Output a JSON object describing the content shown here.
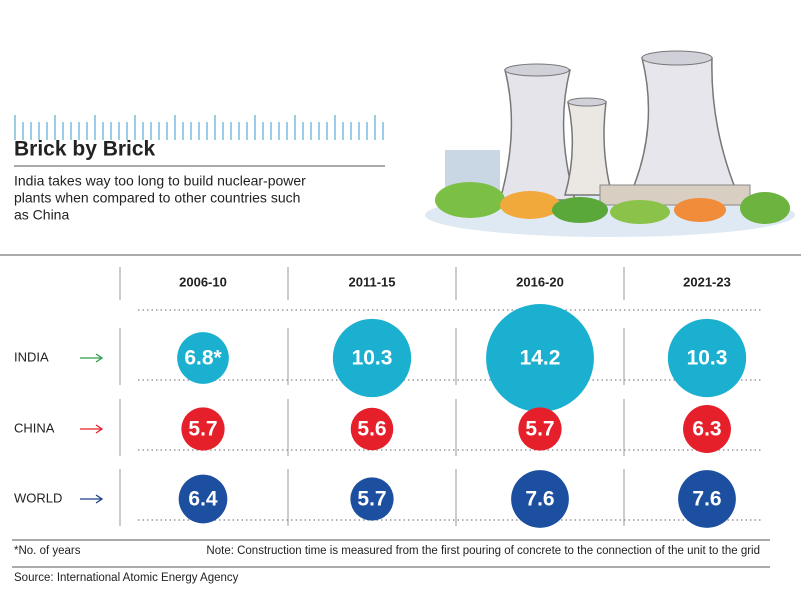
{
  "chart_data": {
    "type": "bubble-table",
    "title": "Brick by Brick",
    "subtitle": [
      "India takes way too long to build nuclear-power",
      "plants when compared to other countries such",
      "as China"
    ],
    "categories": [
      "2006-10",
      "2011-15",
      "2016-20",
      "2021-23"
    ],
    "series": [
      {
        "name": "INDIA",
        "color": "#1bb0d0",
        "arrow_color": "#2e9e47",
        "values": [
          6.8,
          10.3,
          14.2,
          10.3
        ],
        "value_labels": [
          "6.8*",
          "10.3",
          "14.2",
          "10.3"
        ]
      },
      {
        "name": "CHINA",
        "color": "#e5202b",
        "arrow_color": "#e5202b",
        "values": [
          5.7,
          5.6,
          5.7,
          6.3
        ]
      },
      {
        "name": "WORLD",
        "color": "#1c4f9f",
        "arrow_color": "#1c3f8f",
        "values": [
          6.4,
          5.7,
          7.6,
          7.6
        ]
      }
    ],
    "footnote": "*No. of years",
    "note": "Note: Construction time is measured from the first pouring of concrete to the connection of the unit to the grid",
    "source": "Source: International Atomic Energy Agency"
  }
}
